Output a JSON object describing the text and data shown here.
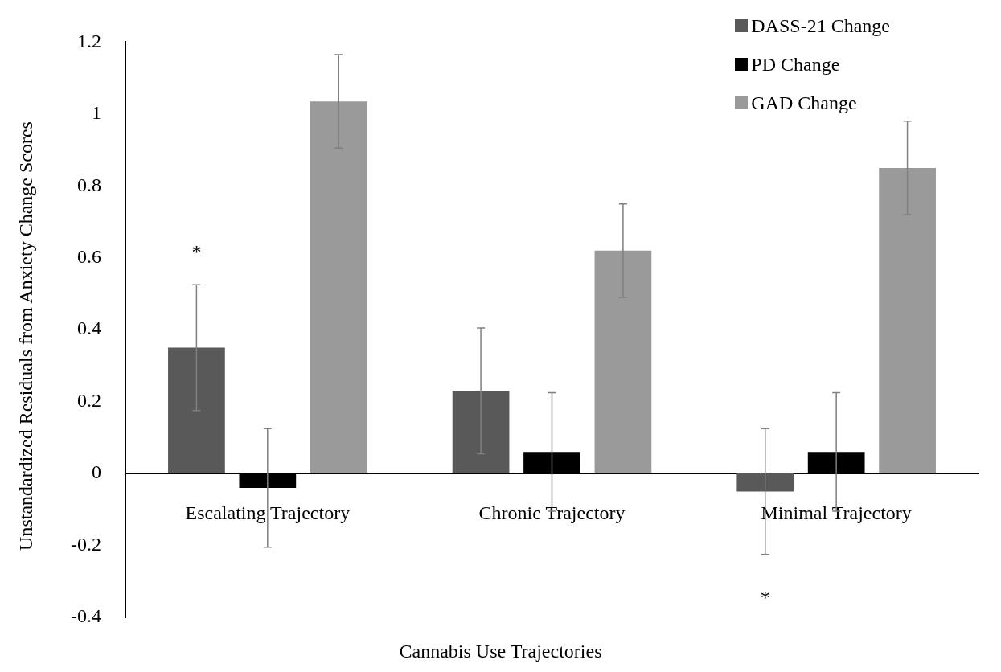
{
  "chart_data": {
    "type": "bar",
    "xlabel": "Cannabis Use Trajectories",
    "ylabel": "Unstandardized Residuals from Anxiety Change Scores",
    "categories": [
      "Escalating Trajectory",
      "Chronic Trajectory",
      "Minimal Trajectory"
    ],
    "series": [
      {
        "name": "DASS-21 Change",
        "color": "#595959",
        "values": [
          0.35,
          0.23,
          -0.05
        ],
        "errors": [
          0.175,
          0.175,
          0.175
        ]
      },
      {
        "name": "PD Change",
        "color": "#000000",
        "values": [
          -0.04,
          0.06,
          0.06
        ],
        "errors": [
          0.165,
          0.165,
          0.165
        ]
      },
      {
        "name": "GAD Change",
        "color": "#9a9a9a",
        "values": [
          1.035,
          0.62,
          0.85
        ],
        "errors": [
          0.13,
          0.13,
          0.13
        ]
      }
    ],
    "ylim": [
      -0.4,
      1.2
    ],
    "yticks": [
      -0.4,
      -0.2,
      0,
      0.2,
      0.4,
      0.6,
      0.8,
      1,
      1.2
    ],
    "grid": false,
    "legend": "top right",
    "annotations": [
      "*",
      "*"
    ]
  }
}
